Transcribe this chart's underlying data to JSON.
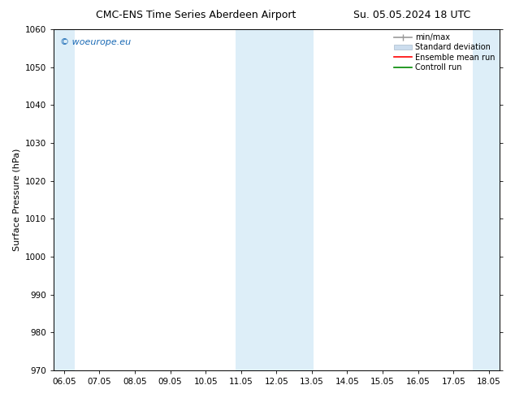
{
  "title_left": "CMC-ENS Time Series Aberdeen Airport",
  "title_right": "Su. 05.05.2024 18 UTC",
  "ylabel": "Surface Pressure (hPa)",
  "ylim": [
    970,
    1060
  ],
  "yticks": [
    970,
    980,
    990,
    1000,
    1010,
    1020,
    1030,
    1040,
    1050,
    1060
  ],
  "xtick_labels": [
    "06.05",
    "07.05",
    "08.05",
    "09.05",
    "10.05",
    "11.05",
    "12.05",
    "13.05",
    "14.05",
    "15.05",
    "16.05",
    "17.05",
    "18.05"
  ],
  "xtick_positions": [
    0,
    1,
    2,
    3,
    4,
    5,
    6,
    7,
    8,
    9,
    10,
    11,
    12
  ],
  "xlim": [
    -0.3,
    12.3
  ],
  "shade_bands": [
    {
      "xmin": -0.3,
      "xmax": 0.3,
      "color": "#ddeef8"
    },
    {
      "xmin": 4.85,
      "xmax": 7.05,
      "color": "#ddeef8"
    },
    {
      "xmin": 11.55,
      "xmax": 12.3,
      "color": "#ddeef8"
    }
  ],
  "watermark_text": "© woeurope.eu",
  "watermark_color": "#1a6ab5",
  "watermark_fontsize": 8,
  "legend_labels": [
    "min/max",
    "Standard deviation",
    "Ensemble mean run",
    "Controll run"
  ],
  "legend_colors_line": [
    "#999999",
    "#bbbbbb",
    "#ff0000",
    "#008800"
  ],
  "background_color": "#ffffff",
  "title_fontsize": 9,
  "axis_label_fontsize": 8,
  "tick_fontsize": 7.5
}
